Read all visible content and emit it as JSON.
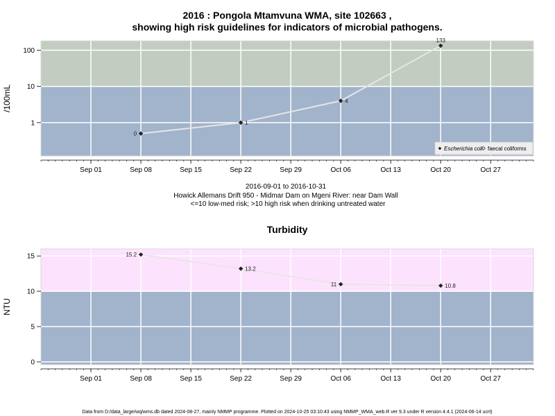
{
  "chart_data": [
    {
      "type": "line",
      "title_line1": "2016 : Pongola Mtamvuna WMA, site 102663 ,",
      "title_line2": "showing high risk guidelines for indicators of microbial pathogens.",
      "ylabel": "/100mL",
      "yscale": "log",
      "ylim": [
        0.12,
        180
      ],
      "y_ticks": [
        {
          "value": 1,
          "label": "1"
        },
        {
          "value": 10,
          "label": "10"
        },
        {
          "value": 100,
          "label": "100"
        }
      ],
      "x_range": [
        "2016-08-25",
        "2016-11-02"
      ],
      "x_ticks": [
        {
          "date": "2016-09-01",
          "label": "Sep 01"
        },
        {
          "date": "2016-09-08",
          "label": "Sep 08"
        },
        {
          "date": "2016-09-15",
          "label": "Sep 15"
        },
        {
          "date": "2016-09-22",
          "label": "Sep 22"
        },
        {
          "date": "2016-09-29",
          "label": "Sep 29"
        },
        {
          "date": "2016-10-06",
          "label": "Oct 06"
        },
        {
          "date": "2016-10-13",
          "label": "Oct 13"
        },
        {
          "date": "2016-10-20",
          "label": "Oct 20"
        },
        {
          "date": "2016-10-27",
          "label": "Oct 27"
        }
      ],
      "bands": [
        {
          "from": 0.12,
          "to": 10,
          "color": "#a2b3cc"
        },
        {
          "from": 10,
          "to": 180,
          "color": "#c3ccc0"
        }
      ],
      "series": [
        {
          "name": "Escherichia coli",
          "color": "#e6e6e6",
          "points": [
            {
              "date": "2016-09-08",
              "y": 0.5,
              "label": "0",
              "label_side": "left"
            },
            {
              "date": "2016-09-22",
              "y": 1,
              "label": "1",
              "label_side": "right"
            },
            {
              "date": "2016-10-06",
              "y": 4,
              "label": "4",
              "label_side": "right"
            },
            {
              "date": "2016-10-20",
              "y": 133,
              "label": "133",
              "label_side": "above"
            }
          ]
        }
      ],
      "legend": {
        "placement": "bottom-right",
        "items": [
          {
            "label": "Escherichia coli",
            "marker": "filled-diamond"
          },
          {
            "label": "faecal coliforms",
            "marker": "open-diamond"
          }
        ]
      },
      "caption": [
        "2016-09-01 to 2016-10-31",
        "Howick Allemans Drift 950 - Midmar Dam on Mgeni River: near Dam Wall",
        "<=10 low-med risk; >10 high risk when drinking untreated water"
      ]
    },
    {
      "type": "line",
      "title": "Turbidity",
      "ylabel": "NTU",
      "ylim": [
        -0.4,
        16
      ],
      "y_ticks": [
        {
          "value": 0,
          "label": "0"
        },
        {
          "value": 5,
          "label": "5"
        },
        {
          "value": 10,
          "label": "10"
        },
        {
          "value": 15,
          "label": "15"
        }
      ],
      "x_range": [
        "2016-08-25",
        "2016-11-02"
      ],
      "x_ticks": [
        {
          "date": "2016-09-01",
          "label": "Sep 01"
        },
        {
          "date": "2016-09-08",
          "label": "Sep 08"
        },
        {
          "date": "2016-09-15",
          "label": "Sep 15"
        },
        {
          "date": "2016-09-22",
          "label": "Sep 22"
        },
        {
          "date": "2016-09-29",
          "label": "Sep 29"
        },
        {
          "date": "2016-10-06",
          "label": "Oct 06"
        },
        {
          "date": "2016-10-13",
          "label": "Oct 13"
        },
        {
          "date": "2016-10-20",
          "label": "Oct 20"
        },
        {
          "date": "2016-10-27",
          "label": "Oct 27"
        }
      ],
      "bands": [
        {
          "from": -0.4,
          "to": 10,
          "color": "#a2b3cc"
        },
        {
          "from": 10,
          "to": 16,
          "color": "#fde2fd"
        }
      ],
      "series": [
        {
          "color": "#e6e6e6",
          "points": [
            {
              "date": "2016-09-08",
              "y": 15.2,
              "label": "15.2",
              "label_side": "left"
            },
            {
              "date": "2016-09-22",
              "y": 13.2,
              "label": "13.2",
              "label_side": "right"
            },
            {
              "date": "2016-10-06",
              "y": 11,
              "label": "11",
              "label_side": "left"
            },
            {
              "date": "2016-10-20",
              "y": 10.8,
              "label": "10.8",
              "label_side": "right"
            }
          ]
        }
      ]
    }
  ],
  "footer": "Data from D:/data_large/wq/wms.db dated 2024-08-27, mainly NMMP programme. Plotted on 2024-10-25 03:10:43 using NMMP_WMA_web.R ver 9.3 under R version 4.4.1 (2024-06-14 ucrt)"
}
